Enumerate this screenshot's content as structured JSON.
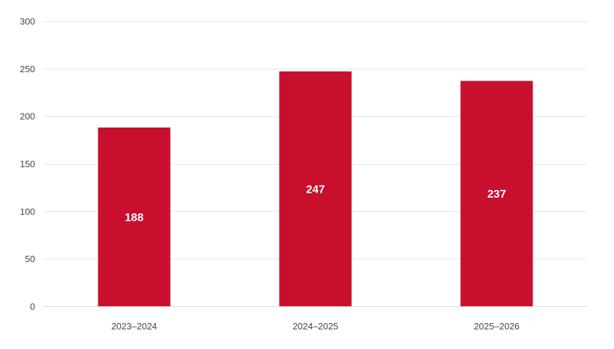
{
  "chart_data": {
    "type": "bar",
    "categories": [
      "2023–2024",
      "2024–2025",
      "2025–2026"
    ],
    "values": [
      188,
      247,
      237
    ],
    "data_labels": [
      "188",
      "247",
      "237"
    ],
    "title": "",
    "xlabel": "",
    "ylabel": "",
    "ylim": [
      0,
      300
    ],
    "yticks": [
      0,
      50,
      100,
      150,
      200,
      250,
      300
    ],
    "ytick_labels": [
      "0",
      "50",
      "100",
      "150",
      "200",
      "250",
      "300"
    ],
    "grid": true,
    "legend": "none",
    "colors": {
      "bar": "#c8102e",
      "grid": "#e6e6e6",
      "axis_text": "#444444",
      "data_label": "#ffffff"
    }
  }
}
